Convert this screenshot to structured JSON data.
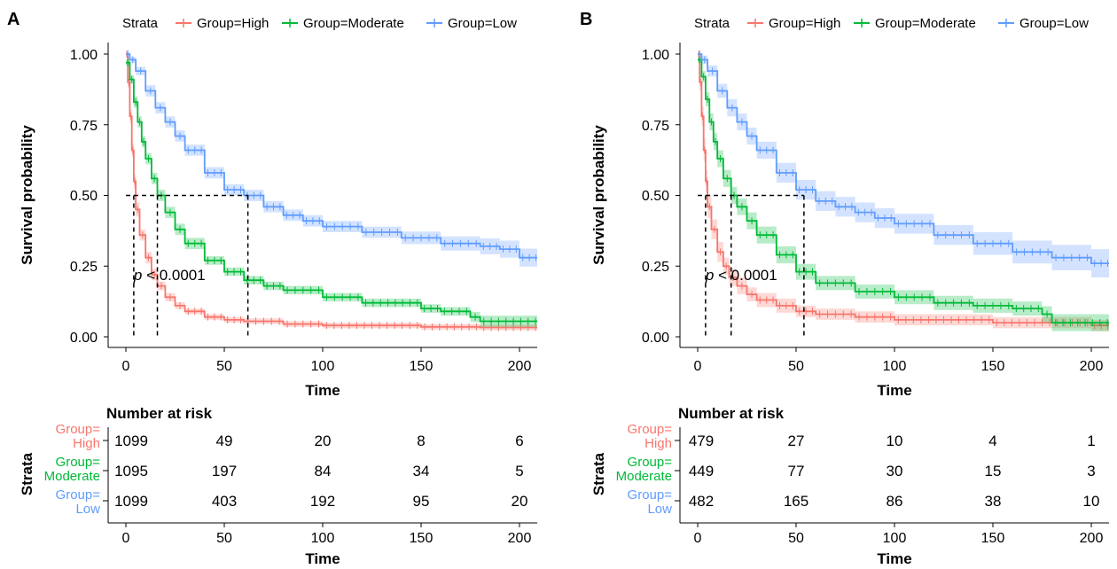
{
  "chart_data": [
    {
      "type": "line",
      "panel_label": "A",
      "legend": {
        "title": "Strata",
        "placement": "top",
        "entries": [
          "Group=High",
          "Group=Moderate",
          "Group=Low"
        ]
      },
      "xlabel": "Time",
      "ylabel": "Survival probability",
      "xlim": [
        -8,
        210
      ],
      "ylim": [
        0,
        1
      ],
      "x_ticks": [
        "0",
        "50",
        "100",
        "150",
        "200"
      ],
      "y_ticks": [
        "0.00",
        "0.25",
        "0.50",
        "0.75",
        "1.00"
      ],
      "annotation": {
        "p_prefix": "p",
        "p_rest": " < 0.0001",
        "x": 4,
        "y": 0.2
      },
      "median_line_y": 0.5,
      "medians": [
        4,
        16,
        62
      ],
      "series": [
        {
          "name": "Group=High",
          "color": "#F8766D",
          "x": [
            0,
            1,
            2,
            3,
            4,
            5,
            7,
            10,
            13,
            16,
            20,
            25,
            30,
            40,
            50,
            60,
            80,
            100,
            150,
            180,
            210
          ],
          "y": [
            1.0,
            0.9,
            0.78,
            0.66,
            0.55,
            0.45,
            0.36,
            0.28,
            0.22,
            0.18,
            0.14,
            0.11,
            0.09,
            0.07,
            0.06,
            0.055,
            0.045,
            0.04,
            0.035,
            0.033,
            0.03
          ],
          "ci_half": [
            0,
            0.02,
            0.025,
            0.025,
            0.025,
            0.025,
            0.02,
            0.02,
            0.02,
            0.015,
            0.015,
            0.012,
            0.01,
            0.01,
            0.01,
            0.01,
            0.01,
            0.01,
            0.01,
            0.01,
            0.01
          ]
        },
        {
          "name": "Group=Moderate",
          "color": "#00BA38",
          "x": [
            0,
            2,
            4,
            6,
            8,
            10,
            13,
            16,
            20,
            25,
            30,
            40,
            50,
            60,
            70,
            80,
            100,
            120,
            150,
            160,
            175,
            180,
            210
          ],
          "y": [
            0.97,
            0.91,
            0.83,
            0.76,
            0.69,
            0.63,
            0.56,
            0.5,
            0.44,
            0.38,
            0.33,
            0.27,
            0.23,
            0.2,
            0.18,
            0.165,
            0.14,
            0.12,
            0.1,
            0.09,
            0.07,
            0.055,
            0.05
          ],
          "ci_half": [
            0.01,
            0.015,
            0.02,
            0.02,
            0.02,
            0.02,
            0.02,
            0.02,
            0.02,
            0.02,
            0.02,
            0.015,
            0.015,
            0.015,
            0.015,
            0.015,
            0.015,
            0.015,
            0.015,
            0.015,
            0.018,
            0.02,
            0.02
          ]
        },
        {
          "name": "Group=Low",
          "color": "#619CFF",
          "x": [
            0,
            2,
            5,
            10,
            15,
            20,
            25,
            30,
            40,
            50,
            60,
            70,
            80,
            90,
            100,
            120,
            140,
            160,
            180,
            190,
            200,
            210
          ],
          "y": [
            1.0,
            0.98,
            0.94,
            0.87,
            0.81,
            0.76,
            0.71,
            0.66,
            0.58,
            0.52,
            0.5,
            0.46,
            0.43,
            0.41,
            0.39,
            0.37,
            0.35,
            0.33,
            0.32,
            0.31,
            0.28,
            0.27
          ],
          "ci_half": [
            0,
            0.01,
            0.015,
            0.02,
            0.02,
            0.02,
            0.02,
            0.02,
            0.02,
            0.02,
            0.02,
            0.02,
            0.02,
            0.02,
            0.02,
            0.02,
            0.022,
            0.025,
            0.028,
            0.03,
            0.032,
            0.035
          ]
        }
      ],
      "risk_table": {
        "title": "Number at risk",
        "strata_axis_label": "Strata",
        "xlabel": "Time",
        "rows": [
          {
            "label_line1": "Group=",
            "label_line2": "High",
            "color": "#F8766D",
            "values": [
              "1099",
              "49",
              "20",
              "8",
              "6"
            ]
          },
          {
            "label_line1": "Group=",
            "label_line2": "Moderate",
            "color": "#00BA38",
            "values": [
              "1095",
              "197",
              "84",
              "34",
              "5"
            ]
          },
          {
            "label_line1": "Group=",
            "label_line2": "Low",
            "color": "#619CFF",
            "values": [
              "1099",
              "403",
              "192",
              "95",
              "20"
            ]
          }
        ]
      }
    },
    {
      "type": "line",
      "panel_label": "B",
      "legend": {
        "title": "Strata",
        "placement": "top",
        "entries": [
          "Group=High",
          "Group=Moderate",
          "Group=Low"
        ]
      },
      "xlabel": "Time",
      "ylabel": "Survival probability",
      "xlim": [
        -8,
        210
      ],
      "ylim": [
        0,
        1
      ],
      "x_ticks": [
        "0",
        "50",
        "100",
        "150",
        "200"
      ],
      "y_ticks": [
        "0.00",
        "0.25",
        "0.50",
        "0.75",
        "1.00"
      ],
      "annotation": {
        "p_prefix": "p",
        "p_rest": " < 0.0001",
        "x": 4,
        "y": 0.2
      },
      "median_line_y": 0.5,
      "medians": [
        4,
        17,
        54
      ],
      "series": [
        {
          "name": "Group=High",
          "color": "#F8766D",
          "x": [
            0,
            1,
            2,
            3,
            4,
            5,
            7,
            10,
            13,
            16,
            20,
            25,
            30,
            40,
            50,
            60,
            80,
            100,
            150,
            200,
            210
          ],
          "y": [
            1.0,
            0.9,
            0.78,
            0.66,
            0.55,
            0.46,
            0.38,
            0.3,
            0.25,
            0.21,
            0.18,
            0.15,
            0.13,
            0.11,
            0.09,
            0.08,
            0.07,
            0.06,
            0.05,
            0.04,
            0.04
          ],
          "ci_half": [
            0,
            0.03,
            0.035,
            0.04,
            0.04,
            0.04,
            0.035,
            0.035,
            0.03,
            0.03,
            0.03,
            0.025,
            0.025,
            0.025,
            0.02,
            0.02,
            0.02,
            0.02,
            0.02,
            0.02,
            0.02
          ]
        },
        {
          "name": "Group=Moderate",
          "color": "#00BA38",
          "x": [
            0,
            2,
            4,
            6,
            8,
            10,
            13,
            17,
            20,
            25,
            30,
            40,
            50,
            60,
            80,
            100,
            120,
            140,
            160,
            175,
            180,
            210
          ],
          "y": [
            0.98,
            0.92,
            0.84,
            0.76,
            0.69,
            0.63,
            0.56,
            0.5,
            0.46,
            0.41,
            0.36,
            0.29,
            0.23,
            0.19,
            0.16,
            0.14,
            0.12,
            0.11,
            0.1,
            0.08,
            0.05,
            0.05
          ],
          "ci_half": [
            0.01,
            0.02,
            0.025,
            0.03,
            0.03,
            0.03,
            0.03,
            0.03,
            0.03,
            0.03,
            0.03,
            0.03,
            0.028,
            0.025,
            0.025,
            0.025,
            0.025,
            0.025,
            0.025,
            0.028,
            0.03,
            0.03
          ]
        },
        {
          "name": "Group=Low",
          "color": "#619CFF",
          "x": [
            0,
            2,
            5,
            10,
            15,
            20,
            25,
            30,
            40,
            50,
            60,
            70,
            80,
            90,
            100,
            120,
            140,
            160,
            180,
            200,
            210
          ],
          "y": [
            1.0,
            0.98,
            0.94,
            0.87,
            0.81,
            0.76,
            0.71,
            0.66,
            0.58,
            0.52,
            0.48,
            0.46,
            0.44,
            0.42,
            0.4,
            0.36,
            0.33,
            0.3,
            0.28,
            0.26,
            0.26
          ],
          "ci_half": [
            0,
            0.015,
            0.02,
            0.025,
            0.03,
            0.03,
            0.03,
            0.03,
            0.035,
            0.035,
            0.035,
            0.035,
            0.035,
            0.035,
            0.035,
            0.035,
            0.04,
            0.04,
            0.045,
            0.05,
            0.05
          ]
        }
      ],
      "risk_table": {
        "title": "Number at risk",
        "strata_axis_label": "Strata",
        "xlabel": "Time",
        "rows": [
          {
            "label_line1": "Group=",
            "label_line2": "High",
            "color": "#F8766D",
            "values": [
              "479",
              "27",
              "10",
              "4",
              "1"
            ]
          },
          {
            "label_line1": "Group=",
            "label_line2": "Moderate",
            "color": "#00BA38",
            "values": [
              "449",
              "77",
              "30",
              "15",
              "3"
            ]
          },
          {
            "label_line1": "Group=",
            "label_line2": "Low",
            "color": "#619CFF",
            "values": [
              "482",
              "165",
              "86",
              "38",
              "10"
            ]
          }
        ]
      }
    }
  ]
}
